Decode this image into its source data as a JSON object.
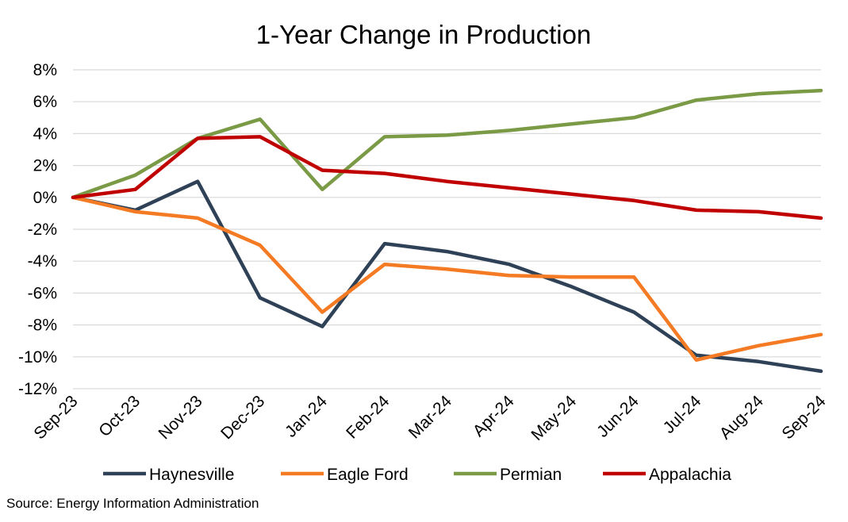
{
  "chart_data": {
    "type": "line",
    "title": "1-Year Change in Production",
    "xlabel": "",
    "ylabel": "",
    "categories": [
      "Sep-23",
      "Oct-23",
      "Nov-23",
      "Dec-23",
      "Jan-24",
      "Feb-24",
      "Mar-24",
      "Apr-24",
      "May-24",
      "Jun-24",
      "Jul-24",
      "Aug-24",
      "Sep-24"
    ],
    "yticks": [
      "8%",
      "6%",
      "4%",
      "2%",
      "0%",
      "-2%",
      "-4%",
      "-6%",
      "-8%",
      "-10%",
      "-12%"
    ],
    "ylim": [
      -12,
      8
    ],
    "grid": true,
    "legend_position": "bottom",
    "series": [
      {
        "name": "Haynesville",
        "color": "#2E4157",
        "values": [
          0,
          -0.8,
          1.0,
          -6.3,
          -8.1,
          -2.9,
          -3.4,
          -4.2,
          -5.6,
          -7.2,
          -9.9,
          -10.3,
          -10.9
        ]
      },
      {
        "name": "Eagle Ford",
        "color": "#F47B24",
        "values": [
          0,
          -0.9,
          -1.3,
          -3.0,
          -7.2,
          -4.2,
          -4.5,
          -4.9,
          -5.0,
          -5.0,
          -10.2,
          -9.3,
          -8.6
        ]
      },
      {
        "name": "Permian",
        "color": "#7A9A46",
        "values": [
          0,
          1.4,
          3.7,
          4.9,
          0.5,
          3.8,
          3.9,
          4.2,
          4.6,
          5.0,
          6.1,
          6.5,
          6.7
        ]
      },
      {
        "name": "Appalachia",
        "color": "#C00000",
        "values": [
          0,
          0.5,
          3.7,
          3.8,
          1.7,
          1.5,
          1.0,
          0.6,
          0.2,
          -0.2,
          -0.8,
          -0.9,
          -1.3
        ]
      }
    ],
    "source": "Source: Energy Information Administration"
  }
}
